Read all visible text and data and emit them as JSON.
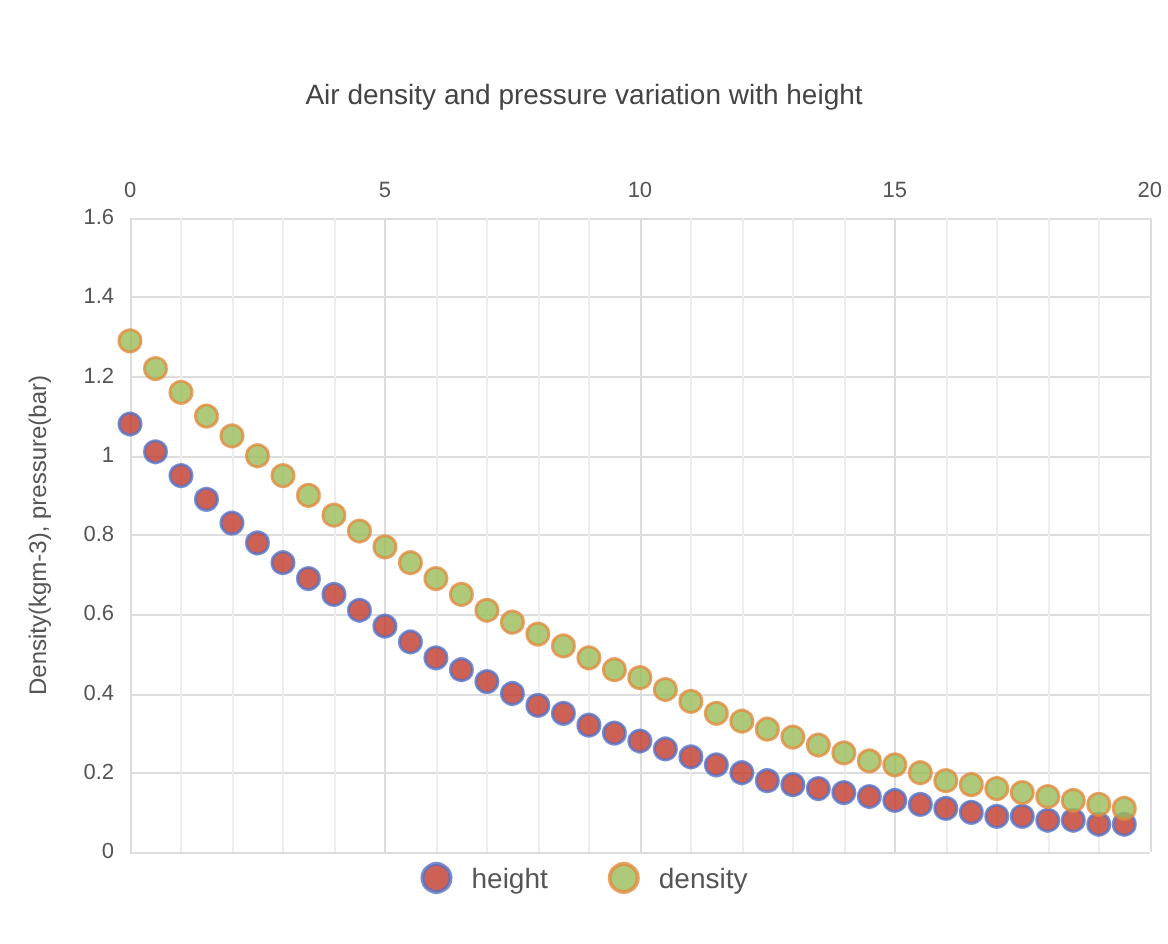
{
  "chart_data": {
    "type": "scatter",
    "title": "Air density and pressure variation with height",
    "ylabel": "Density(kgm-3), pressure(bar)",
    "x": [
      0,
      0.5,
      1,
      1.5,
      2,
      2.5,
      3,
      3.5,
      4,
      4.5,
      5,
      5.5,
      6,
      6.5,
      7,
      7.5,
      8,
      8.5,
      9,
      9.5,
      10,
      10.5,
      11,
      11.5,
      12,
      12.5,
      13,
      13.5,
      14,
      14.5,
      15,
      15.5,
      16,
      16.5,
      17,
      17.5,
      18,
      18.5,
      19,
      19.5
    ],
    "series": [
      {
        "name": "height",
        "color": "#c0392b",
        "values": [
          1.08,
          1.01,
          0.95,
          0.89,
          0.83,
          0.78,
          0.73,
          0.69,
          0.65,
          0.61,
          0.57,
          0.53,
          0.49,
          0.46,
          0.43,
          0.4,
          0.37,
          0.35,
          0.32,
          0.3,
          0.28,
          0.26,
          0.24,
          0.22,
          0.2,
          0.18,
          0.17,
          0.16,
          0.15,
          0.14,
          0.13,
          0.12,
          0.11,
          0.1,
          0.09,
          0.09,
          0.08,
          0.08,
          0.07,
          0.07
        ]
      },
      {
        "name": "density",
        "color": "#9bbb59",
        "values": [
          1.29,
          1.22,
          1.16,
          1.1,
          1.05,
          1.0,
          0.95,
          0.9,
          0.85,
          0.81,
          0.77,
          0.73,
          0.69,
          0.65,
          0.61,
          0.58,
          0.55,
          0.52,
          0.49,
          0.46,
          0.44,
          0.41,
          0.38,
          0.35,
          0.33,
          0.31,
          0.29,
          0.27,
          0.25,
          0.23,
          0.22,
          0.2,
          0.18,
          0.17,
          0.16,
          0.15,
          0.14,
          0.13,
          0.12,
          0.11
        ]
      }
    ],
    "xlim": [
      0,
      20
    ],
    "xticks": [
      0,
      5,
      10,
      15,
      20
    ],
    "ylim": [
      0,
      1.6
    ],
    "yticks": [
      0,
      0.2,
      0.4,
      0.6,
      0.8,
      1,
      1.2,
      1.4,
      1.6
    ],
    "grid": true,
    "legend": "bottom",
    "marker": "circle"
  }
}
